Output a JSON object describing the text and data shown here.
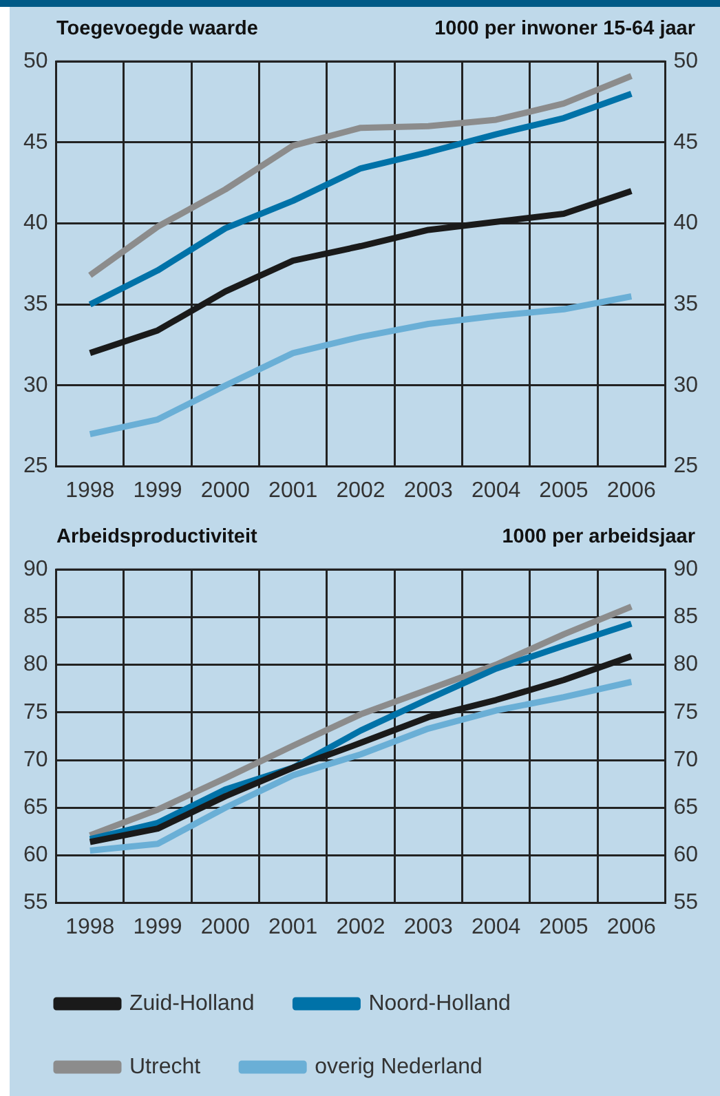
{
  "chart_data": [
    {
      "type": "line",
      "title": "Toegevoegde waarde",
      "subtitle": "1000 per inwoner 15-64 jaar",
      "categories": [
        "1998",
        "1999",
        "2000",
        "2001",
        "2002",
        "2003",
        "2004",
        "2005",
        "2006"
      ],
      "series": [
        {
          "color": "#1a1a1a",
          "values": [
            32.0,
            33.4,
            35.8,
            37.7,
            38.6,
            39.6,
            40.1,
            40.6,
            42.0
          ]
        },
        {
          "color": "#0072a8",
          "values": [
            35.0,
            37.1,
            39.7,
            41.4,
            43.4,
            44.4,
            45.5,
            46.5,
            48.0
          ]
        },
        {
          "color": "#8c8c8c",
          "values": [
            36.8,
            39.8,
            42.1,
            44.8,
            45.9,
            46.0,
            46.4,
            47.4,
            49.1
          ]
        },
        {
          "color": "#6aafd6",
          "values": [
            27.0,
            27.9,
            30.0,
            32.0,
            33.0,
            33.8,
            34.3,
            34.7,
            35.5
          ]
        }
      ],
      "ylim": [
        25,
        50
      ],
      "yticks": [
        25,
        30,
        35,
        40,
        45,
        50
      ],
      "y2lim": [
        25,
        50
      ],
      "y2ticks": [
        25,
        30,
        35,
        40,
        45,
        50
      ],
      "grid": true
    },
    {
      "type": "line",
      "title": "Arbeidsproductiviteit",
      "subtitle": "1000 per arbeidsjaar",
      "categories": [
        "1998",
        "1999",
        "2000",
        "2001",
        "2002",
        "2003",
        "2004",
        "2005",
        "2006"
      ],
      "series": [
        {
          "name": "Zuid-Holland",
          "color": "#1a1a1a",
          "values": [
            61.4,
            62.8,
            66.2,
            69.2,
            71.8,
            74.5,
            76.3,
            78.4,
            80.9
          ]
        },
        {
          "name": "Noord-Holland",
          "color": "#0072a8",
          "values": [
            61.7,
            63.4,
            66.9,
            69.2,
            73.1,
            76.4,
            79.6,
            82.0,
            84.3
          ]
        },
        {
          "name": "Utrecht",
          "color": "#8c8c8c",
          "values": [
            62.1,
            64.8,
            68.1,
            71.5,
            74.8,
            77.4,
            80.0,
            83.2,
            86.1
          ]
        },
        {
          "name": "overig Nederland",
          "color": "#6aafd6",
          "values": [
            60.5,
            61.2,
            65.0,
            68.4,
            70.6,
            73.3,
            75.2,
            76.6,
            78.2
          ]
        }
      ],
      "ylim": [
        55,
        90
      ],
      "yticks": [
        55,
        60,
        65,
        70,
        75,
        80,
        85,
        90
      ],
      "y2lim": [
        55,
        90
      ],
      "y2ticks": [
        55,
        60,
        65,
        70,
        75,
        80,
        85,
        90
      ],
      "grid": true,
      "legend": "bottom"
    }
  ]
}
